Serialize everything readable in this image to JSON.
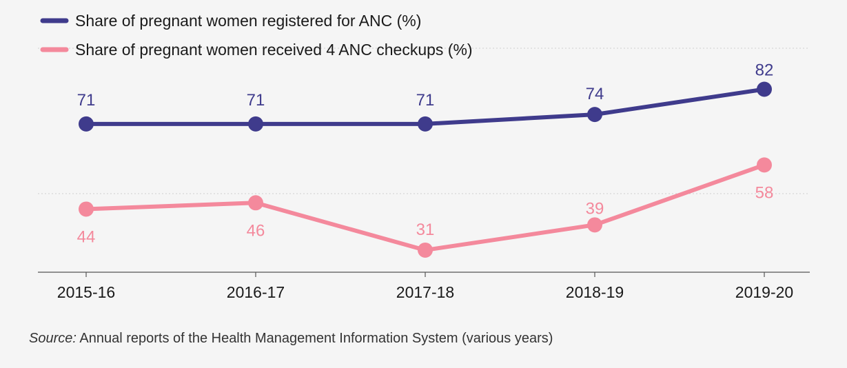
{
  "chart_data": {
    "type": "line",
    "categories": [
      "2015-16",
      "2016-17",
      "2017-18",
      "2018-19",
      "2019-20"
    ],
    "series": [
      {
        "name": "Share of pregnant women registered for ANC  (%)",
        "values": [
          71,
          71,
          71,
          74,
          82
        ],
        "color": "#3f3b8c"
      },
      {
        "name": "Share of pregnant women received 4 ANC checkups (%)",
        "values": [
          44,
          46,
          31,
          39,
          58
        ],
        "color": "#f4899c"
      }
    ],
    "ylim": [
      24,
      95
    ],
    "grid": true,
    "legend": "top-left"
  },
  "source": {
    "label": "Source:",
    "text": " Annual reports of the Health Management Information System (various years)"
  }
}
